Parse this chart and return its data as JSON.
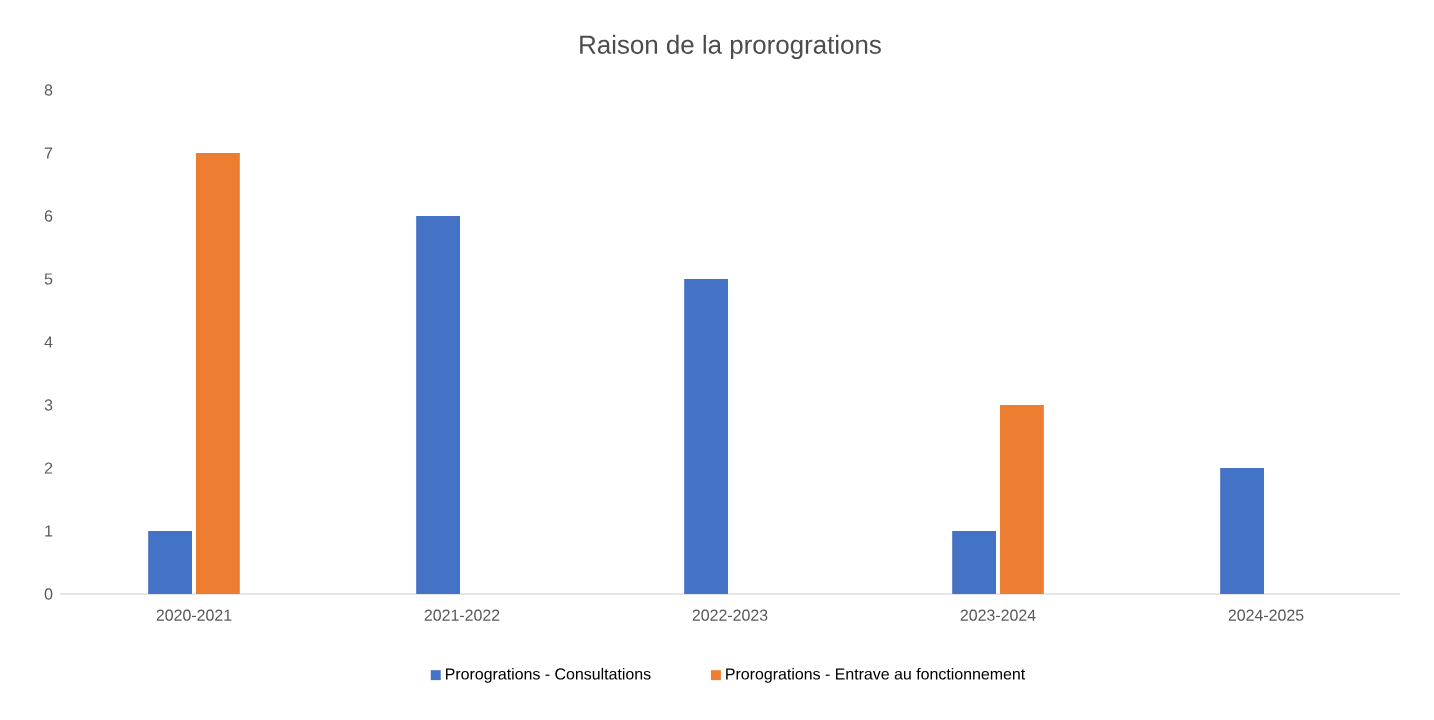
{
  "chart_data": {
    "type": "bar",
    "title": "Raison de la prorogrations",
    "categories": [
      "2020-2021",
      "2021-2022",
      "2022-2023",
      "2023-2024",
      "2024-2025"
    ],
    "series": [
      {
        "name": "Prorogrations - Consultations",
        "color": "#4472c4",
        "values": [
          1,
          6,
          5,
          1,
          2
        ]
      },
      {
        "name": "Prorogrations - Entrave au fonctionnement",
        "color": "#ed7d31",
        "values": [
          7,
          0,
          0,
          3,
          0
        ]
      }
    ],
    "ylim": [
      0,
      8
    ],
    "yticks": [
      0,
      1,
      2,
      3,
      4,
      5,
      6,
      7,
      8
    ],
    "grid": false,
    "legend": "bottom"
  }
}
